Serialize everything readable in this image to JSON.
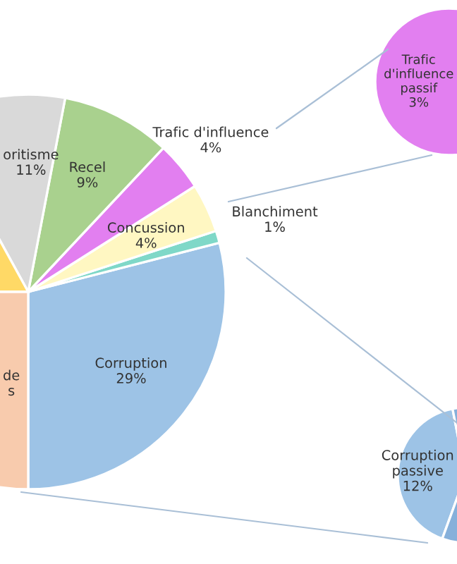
{
  "chart_data": [
    {
      "type": "pie",
      "categories": [
        "Corruption",
        "Blanchiment",
        "Concussion",
        "Trafic d'influence",
        "Recel",
        "oritisme",
        null,
        "de\ns"
      ],
      "values": [
        29,
        1,
        4,
        4,
        9,
        11,
        17,
        25
      ],
      "value_labels": [
        "29%",
        "1%",
        "4%",
        "4%",
        "9%",
        "11%",
        null,
        null
      ],
      "colors": [
        "#9dc3e6",
        "#7fd8c8",
        "#fff7c2",
        "#e27ff0",
        "#a9d18e",
        "#d9d9d9",
        "#ffd966",
        "#f8cbad"
      ]
    },
    {
      "type": "pie",
      "categories": [
        "Trafic d'influence passif"
      ],
      "values": [
        3
      ],
      "value_labels": [
        "3%"
      ],
      "colors": [
        "#e27ff0"
      ]
    },
    {
      "type": "pie",
      "categories": [
        "Corruption passive",
        null
      ],
      "values": [
        12,
        17
      ],
      "value_labels": [
        "12%",
        null
      ],
      "colors": [
        "#9dc3e6",
        "#86b0da"
      ]
    }
  ]
}
